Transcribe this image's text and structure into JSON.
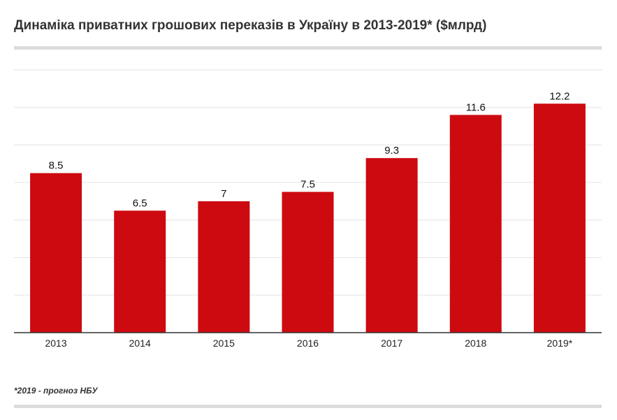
{
  "title": "Динаміка приватних грошових переказів в Україну в 2013-2019* ($млрд)",
  "footnote": "*2019 - прогноз НБУ",
  "colors": {
    "bar": "#cc0a10",
    "grid": "#e3e3e3",
    "axis": "#333333"
  },
  "chart_data": {
    "type": "bar",
    "title": "Динаміка приватних грошових переказів в Україну в 2013-2019* ($млрд)",
    "categories": [
      "2013",
      "2014",
      "2015",
      "2016",
      "2017",
      "2018",
      "2019*"
    ],
    "values": [
      8.5,
      6.5,
      7,
      7.5,
      9.3,
      11.6,
      12.2
    ],
    "value_labels": [
      "8.5",
      "6.5",
      "7",
      "7.5",
      "9.3",
      "11.6",
      "12.2"
    ],
    "ylim": [
      0,
      14
    ],
    "grid": true,
    "legend": "none",
    "xlabel": "",
    "ylabel": ""
  }
}
